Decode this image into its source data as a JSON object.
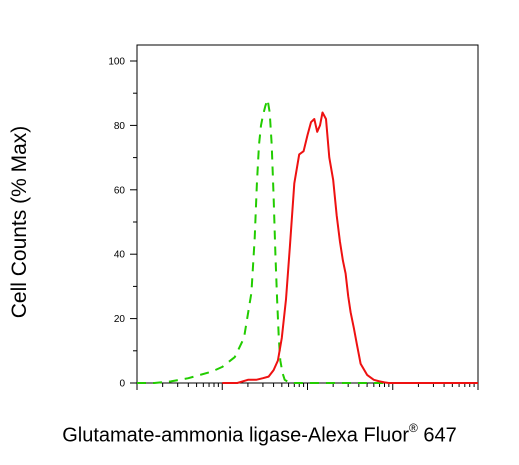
{
  "chart_data": {
    "type": "line",
    "title": "",
    "xlabel_main": "Glutamate-ammonia ligase-Alexa Fluor",
    "xlabel_sup": "®",
    "xlabel_end": " 647",
    "ylabel": "Cell Counts (% Max)",
    "xscale": "log",
    "xlim": [
      10,
      100000
    ],
    "ylim": [
      0,
      100
    ],
    "yticks": [
      "0",
      "20",
      "40",
      "60",
      "80",
      "100"
    ],
    "grid": false,
    "series": [
      {
        "color": "#22cc00",
        "dash": "dashed",
        "x": [
          10,
          16,
          25,
          40,
          55,
          75,
          100,
          140,
          180,
          220,
          240,
          255,
          270,
          285,
          300,
          320,
          340,
          360,
          380,
          400,
          420,
          440,
          460,
          480,
          510,
          540,
          580,
          640,
          800,
          2000,
          100000
        ],
        "y": [
          0,
          0,
          0.5,
          1.5,
          2.5,
          3.5,
          5,
          8,
          14,
          28,
          45,
          62,
          74,
          80,
          83,
          86,
          88,
          84,
          74,
          58,
          40,
          26,
          14,
          7,
          3,
          1,
          0.5,
          0,
          0,
          0,
          0
        ]
      },
      {
        "color": "#ee1111",
        "dash": "solid",
        "x": [
          100,
          150,
          200,
          250,
          300,
          350,
          400,
          450,
          500,
          560,
          620,
          700,
          800,
          900,
          1000,
          1100,
          1200,
          1300,
          1400,
          1500,
          1650,
          1800,
          2000,
          2200,
          2400,
          2600,
          2800,
          3000,
          3200,
          3500,
          3800,
          4200,
          5000,
          6000,
          7000,
          8000,
          9000,
          10000,
          100000
        ],
        "y": [
          0,
          0,
          1,
          1,
          1.5,
          2,
          4,
          7,
          14,
          26,
          42,
          62,
          71,
          72,
          77,
          81,
          82,
          78,
          80,
          84,
          82,
          70,
          63,
          52,
          44,
          38,
          34,
          27,
          22,
          17,
          12,
          6,
          2.5,
          1,
          0.5,
          0.2,
          0,
          0,
          0
        ]
      }
    ]
  }
}
